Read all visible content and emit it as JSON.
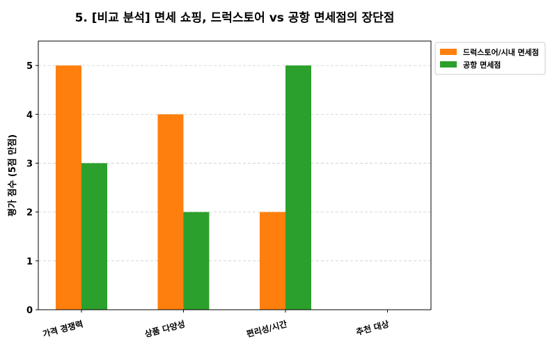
{
  "chart_data": {
    "type": "bar",
    "title": "5. [비교 분석] 면세 쇼핑, 드럭스토어 vs 공항 면세점의 장단점",
    "xlabel": "",
    "ylabel": "평가 점수 (5점 만점)",
    "categories": [
      "가격 경쟁력",
      "상품 다양성",
      "편리성/시간",
      "추천 대상"
    ],
    "series": [
      {
        "name": "드럭스토어/시내 면세점",
        "color": "#ff7f0e",
        "values": [
          5,
          4,
          2,
          0
        ]
      },
      {
        "name": "공항 면세점",
        "color": "#2ca02c",
        "values": [
          3,
          2,
          5,
          0
        ]
      }
    ],
    "ylim": [
      0,
      5.5
    ],
    "yticks": [
      0,
      1,
      2,
      3,
      4,
      5
    ],
    "grid": "y dashed",
    "legend": "outside top-right"
  }
}
